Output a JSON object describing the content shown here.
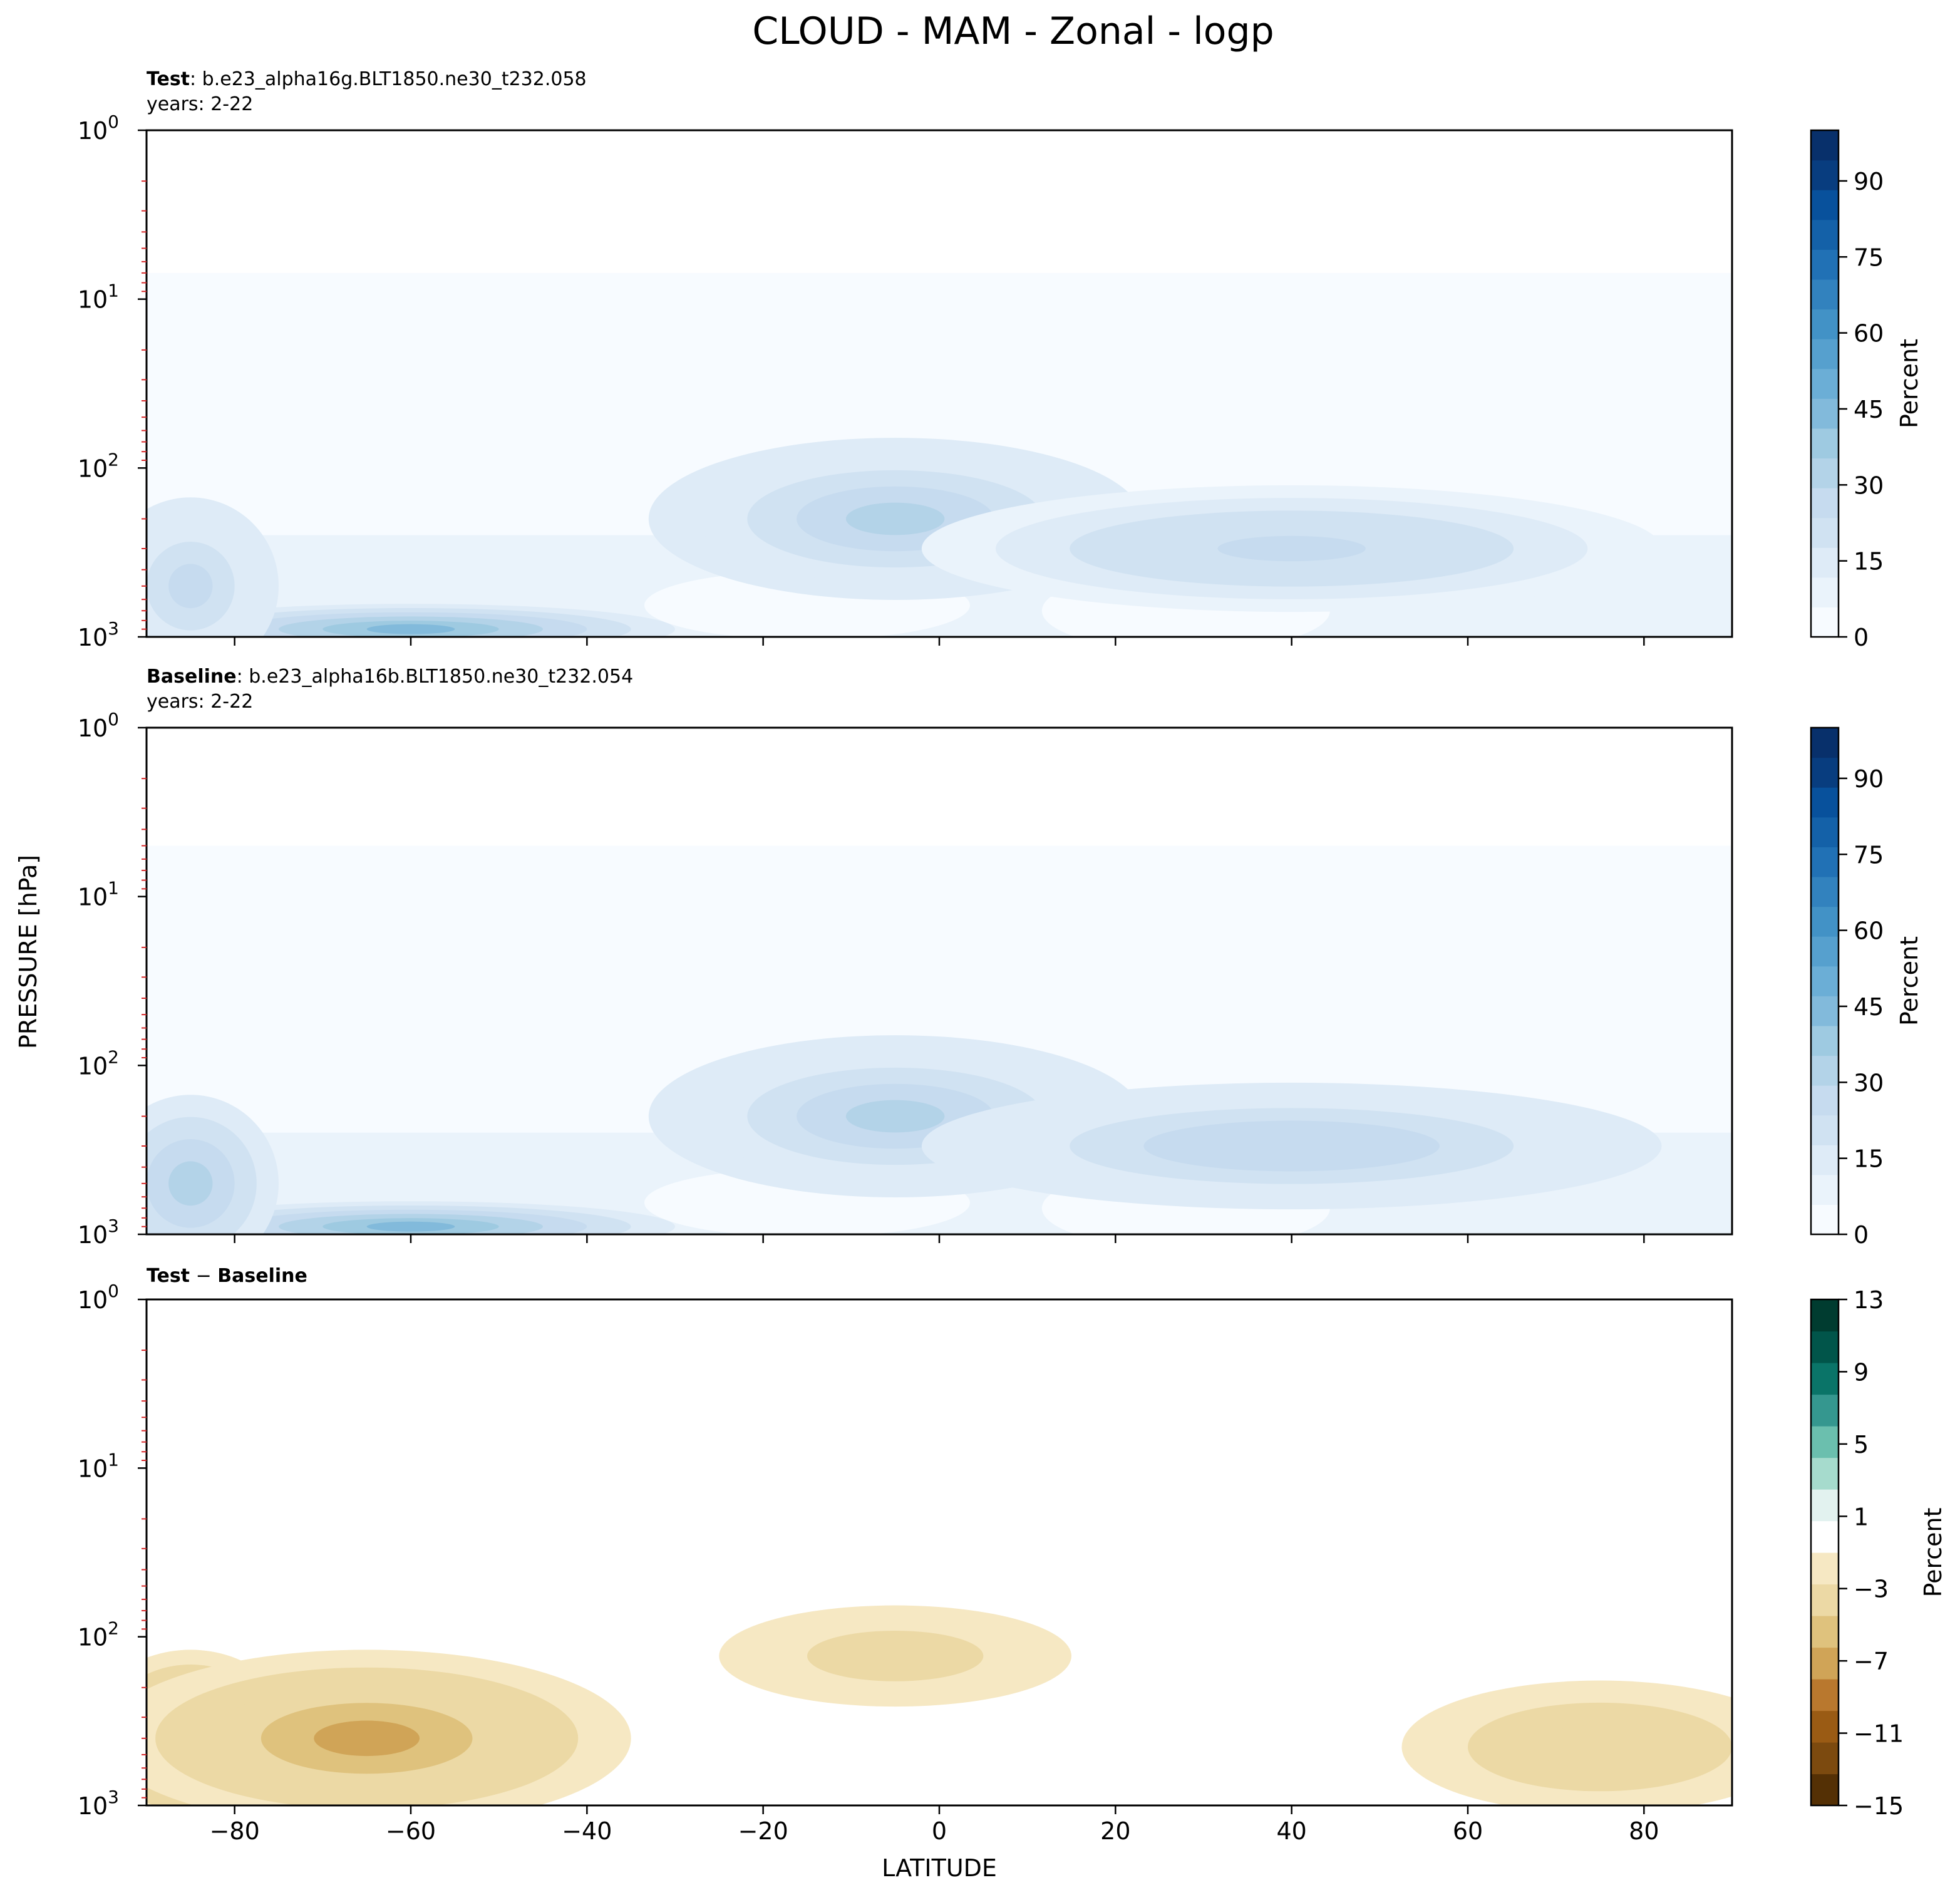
{
  "figure": {
    "title": "CLOUD - MAM - Zonal - logp",
    "shared_ylabel": "PRESSURE [hPa]",
    "shared_xlabel": "LATITUDE"
  },
  "chart_data": [
    {
      "type": "heatmap",
      "subtype": "filled-contour",
      "label_bold": "Test",
      "label_rest": ": b.e23_alpha16g.BLT1850.ne30_t232.058",
      "years": "years: 2-22",
      "xlim": [
        -90,
        90
      ],
      "x_ticks": [
        -80,
        -60,
        -40,
        -20,
        0,
        20,
        40,
        60,
        80
      ],
      "y_scale": "log",
      "y_inverted": true,
      "ylim": [
        1,
        1000
      ],
      "y_ticks": [
        "10^0",
        "10^1",
        "10^2",
        "10^3"
      ],
      "colormap": "Blues",
      "colorbar_label": "Percent",
      "colorbar_range": [
        0,
        100
      ],
      "colorbar_ticks": [
        "0",
        "15",
        "30",
        "45",
        "60",
        "75",
        "90"
      ],
      "colorbar_colors": [
        "#f7fbff",
        "#eaf3fb",
        "#deebf7",
        "#d0e2f2",
        "#c6dbef",
        "#b3d3e8",
        "#9ecae1",
        "#82badb",
        "#6baed6",
        "#56a0ce",
        "#4292c6",
        "#3282be",
        "#2171b5",
        "#1461a8",
        "#08519c",
        "#083d7f",
        "#08306b"
      ],
      "features": [
        {
          "name": "upper-tropical-maximum",
          "lat": -5,
          "pressure_hPa": 200,
          "value": 30
        },
        {
          "name": "southern-ocean-low-cloud",
          "lat": -60,
          "pressure_hPa": 900,
          "value": 45
        },
        {
          "name": "northern-midlatitude-maximum",
          "lat": 40,
          "pressure_hPa": 300,
          "value": 25
        },
        {
          "name": "polar-near-surface",
          "lat": -85,
          "pressure_hPa": 500,
          "value": 25
        },
        {
          "name": "stratospheric-background",
          "lat": 0,
          "pressure_hPa": 10,
          "value": 3
        }
      ]
    },
    {
      "type": "heatmap",
      "subtype": "filled-contour",
      "label_bold": "Baseline",
      "label_rest": ": b.e23_alpha16b.BLT1850.ne30_t232.054",
      "years": "years: 2-22",
      "xlim": [
        -90,
        90
      ],
      "x_ticks": [
        -80,
        -60,
        -40,
        -20,
        0,
        20,
        40,
        60,
        80
      ],
      "y_scale": "log",
      "y_inverted": true,
      "ylim": [
        1,
        1000
      ],
      "y_ticks": [
        "10^0",
        "10^1",
        "10^2",
        "10^3"
      ],
      "colormap": "Blues",
      "colorbar_label": "Percent",
      "colorbar_range": [
        0,
        100
      ],
      "colorbar_ticks": [
        "0",
        "15",
        "30",
        "45",
        "60",
        "75",
        "90"
      ],
      "colorbar_colors": [
        "#f7fbff",
        "#eaf3fb",
        "#deebf7",
        "#d0e2f2",
        "#c6dbef",
        "#b3d3e8",
        "#9ecae1",
        "#82badb",
        "#6baed6",
        "#56a0ce",
        "#4292c6",
        "#3282be",
        "#2171b5",
        "#1461a8",
        "#08519c",
        "#083d7f",
        "#08306b"
      ],
      "features": [
        {
          "name": "upper-tropical-maximum",
          "lat": -5,
          "pressure_hPa": 200,
          "value": 32
        },
        {
          "name": "southern-ocean-low-cloud",
          "lat": -60,
          "pressure_hPa": 900,
          "value": 45
        },
        {
          "name": "northern-midlatitude-maximum",
          "lat": 40,
          "pressure_hPa": 300,
          "value": 28
        },
        {
          "name": "polar-near-surface",
          "lat": -85,
          "pressure_hPa": 500,
          "value": 30
        },
        {
          "name": "stratospheric-background",
          "lat": 0,
          "pressure_hPa": 10,
          "value": 3
        }
      ]
    },
    {
      "type": "heatmap",
      "subtype": "filled-contour",
      "label_bold": "Test",
      "label_rest": " − ",
      "label_bold2": "Baseline",
      "xlim": [
        -90,
        90
      ],
      "x_ticks": [
        -80,
        -60,
        -40,
        -20,
        0,
        20,
        40,
        60,
        80
      ],
      "y_scale": "log",
      "y_inverted": true,
      "ylim": [
        1,
        1000
      ],
      "y_ticks": [
        "10^0",
        "10^1",
        "10^2",
        "10^3"
      ],
      "colormap": "BrBG",
      "colorbar_label": "Percent",
      "colorbar_range": [
        -15,
        13
      ],
      "colorbar_ticks": [
        "−15",
        "−11",
        "−7",
        "−3",
        "1",
        "5",
        "9",
        "13"
      ],
      "colorbar_colors": [
        "#543005",
        "#7c4a0f",
        "#9a5b14",
        "#b9782e",
        "#d0a457",
        "#dfc27d",
        "#ecd9a5",
        "#f6e8c3",
        "#ffffff",
        "#e2f2ef",
        "#a6dbcd",
        "#6bbfae",
        "#35978f",
        "#0a7468",
        "#01554a",
        "#003c30"
      ],
      "features": [
        {
          "name": "south-polar-negative",
          "lat": -85,
          "pressure_hPa": 400,
          "value": -13
        },
        {
          "name": "southern-midlatitude-negative",
          "lat": -65,
          "pressure_hPa": 400,
          "value": -7
        },
        {
          "name": "upper-tropical-negative",
          "lat": -5,
          "pressure_hPa": 130,
          "value": -3
        },
        {
          "name": "arctic-negative",
          "lat": 75,
          "pressure_hPa": 450,
          "value": -4
        },
        {
          "name": "near-zero-background",
          "lat": 0,
          "pressure_hPa": 10,
          "value": 0
        }
      ]
    }
  ]
}
